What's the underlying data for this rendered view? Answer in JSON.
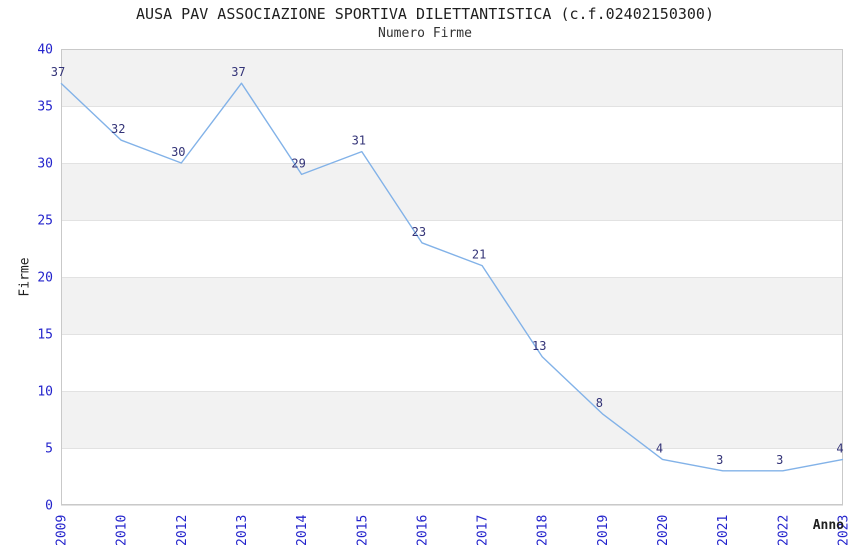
{
  "chart_data": {
    "type": "line",
    "title": "AUSA PAV ASSOCIAZIONE SPORTIVA DILETTANTISTICA (c.f.02402150300)",
    "subtitle": "Numero Firme",
    "xlabel": "Anno",
    "ylabel": "Firme",
    "categories": [
      "2009",
      "2010",
      "2012",
      "2013",
      "2014",
      "2015",
      "2016",
      "2017",
      "2018",
      "2019",
      "2020",
      "2021",
      "2022",
      "2023"
    ],
    "values": [
      37,
      32,
      30,
      37,
      29,
      31,
      23,
      21,
      13,
      8,
      4,
      3,
      3,
      4
    ],
    "ylim": [
      0,
      40
    ],
    "ytick_step": 5,
    "yticks": [
      0,
      5,
      10,
      15,
      20,
      25,
      30,
      35,
      40
    ],
    "grid": true,
    "alternating_bands": true,
    "legend": "none",
    "data_labels_shown": true,
    "x_tick_rotation_deg": -90,
    "colors": {
      "line": "#82b2e8",
      "tick_label": "#2424cc",
      "data_label": "#333377",
      "band_fill": "#f2f2f2",
      "gridline": "#e2e2e2",
      "border": "#c9c9c9",
      "title_text": "#1f1f1f",
      "background": "#ffffff"
    }
  }
}
